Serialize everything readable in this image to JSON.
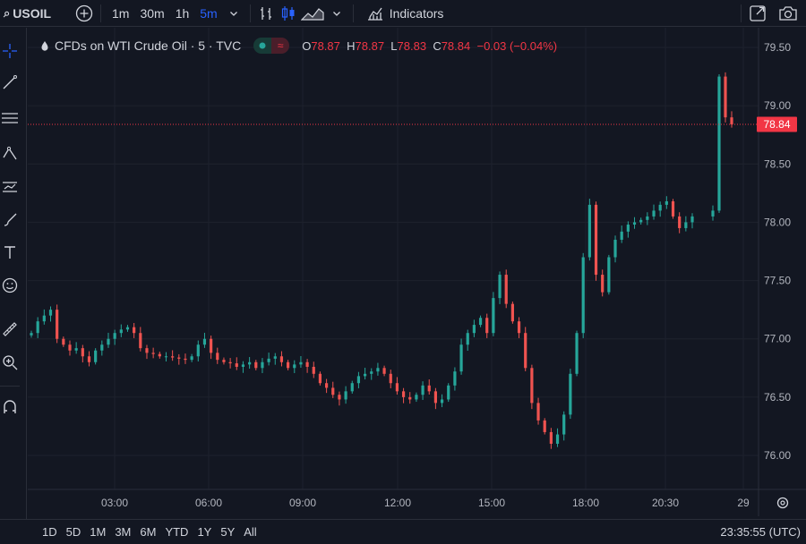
{
  "toolbar": {
    "symbol": "USOIL",
    "intervals": [
      "1m",
      "30m",
      "1h",
      "5m"
    ],
    "active_interval": "5m",
    "indicators_label": "Indicators"
  },
  "legend": {
    "title": "CFDs on WTI Crude Oil · 5 · TVC",
    "open_key": "O",
    "open": "78.87",
    "high_key": "H",
    "high": "78.87",
    "low_key": "L",
    "low": "78.83",
    "close_key": "C",
    "close": "78.84",
    "change": "−0.03 (−0.04%)"
  },
  "axis": {
    "price_ticks": [
      "79.50",
      "79.00",
      "78.50",
      "78.00",
      "77.50",
      "77.00",
      "76.50",
      "76.00"
    ],
    "time_ticks": [
      "03:00",
      "06:00",
      "09:00",
      "12:00",
      "15:00",
      "18:00",
      "20:30",
      "29"
    ],
    "last_price": "78.84"
  },
  "bottombar": {
    "ranges": [
      "1D",
      "5D",
      "1M",
      "3M",
      "6M",
      "YTD",
      "1Y",
      "5Y",
      "All"
    ],
    "clock": "23:35:55 (UTC)"
  },
  "colors": {
    "up": "#26a69a",
    "down": "#ef5350",
    "bg": "#131722",
    "grid": "#1e222d",
    "last_price": "#f23645"
  },
  "chart_data": {
    "type": "line",
    "title": "",
    "xlabel": "",
    "ylabel": "",
    "ylim": [
      75.92,
      79.62
    ],
    "x_ticks": [
      "03:00",
      "06:00",
      "09:00",
      "12:00",
      "15:00",
      "18:00",
      "20:30",
      "29"
    ],
    "series": [
      {
        "values": [
          77.05,
          77.15,
          77.2,
          77.25,
          77.0,
          76.95,
          76.9,
          76.92,
          76.85,
          76.8,
          76.9,
          76.95,
          77.0,
          77.05,
          77.08,
          77.1,
          77.05,
          76.92,
          76.88,
          76.87,
          76.85,
          76.85,
          76.84,
          76.83,
          76.82,
          76.85,
          76.95,
          77.0,
          76.88,
          76.82,
          76.8,
          76.79,
          76.76,
          76.78,
          76.8,
          76.75,
          76.8,
          76.83,
          76.85,
          76.8,
          76.75,
          76.78,
          76.8,
          76.76,
          76.7,
          76.62,
          76.58,
          76.52,
          76.48,
          76.55,
          76.62,
          76.68,
          76.7,
          76.72,
          76.75,
          76.7,
          76.62,
          76.55,
          76.5,
          76.48,
          76.52,
          76.6,
          76.55,
          76.45,
          76.48,
          76.6,
          76.72,
          76.95,
          77.05,
          77.12,
          77.18,
          77.05,
          77.35,
          77.55,
          77.3,
          77.15,
          77.05,
          76.75,
          76.45,
          76.3,
          76.2,
          76.1,
          76.18,
          76.35,
          76.7,
          77.05,
          77.7,
          78.15,
          77.55,
          77.4,
          77.7,
          77.85,
          77.92,
          77.98,
          78.0,
          78.02,
          78.05,
          78.1,
          78.15,
          78.18,
          78.05,
          77.95,
          78.0,
          78.05,
          78.1,
          79.25,
          78.9,
          78.84
        ]
      }
    ]
  }
}
